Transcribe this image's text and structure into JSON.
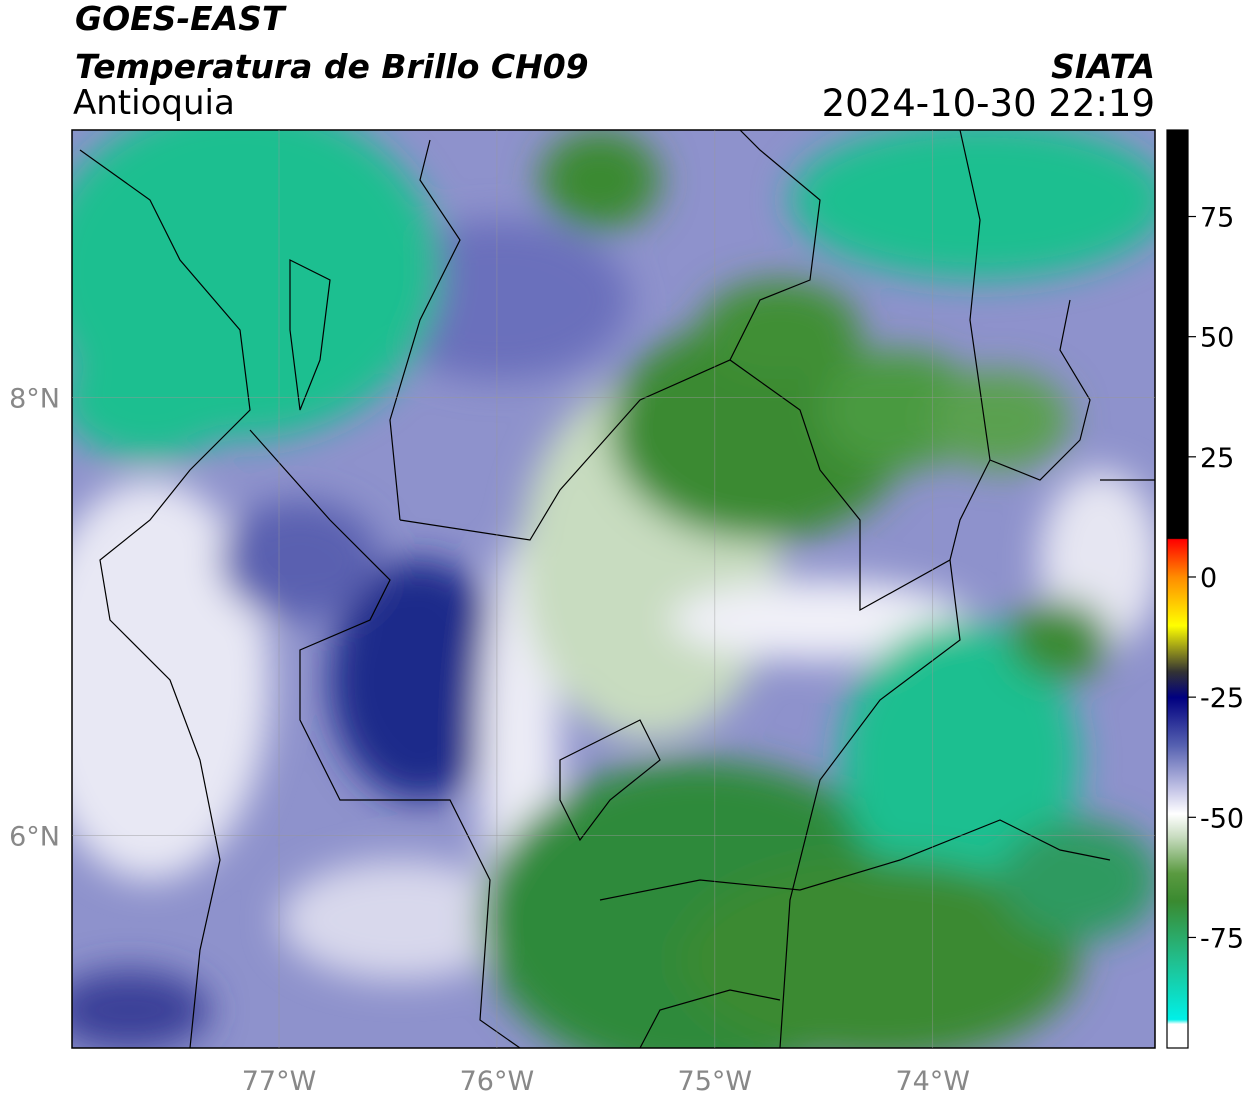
{
  "header": {
    "title": "GOES-EAST",
    "subtitle": "Temperatura de Brillo CH09",
    "region": "Antioquia",
    "source": "SIATA",
    "datetime": "2024-10-30 22:19"
  },
  "map": {
    "xlim": [
      -77.95,
      -72.98
    ],
    "ylim": [
      5.03,
      9.22
    ],
    "xticks": [
      {
        "value": -77,
        "label": "77°W"
      },
      {
        "value": -76,
        "label": "76°W"
      },
      {
        "value": -75,
        "label": "75°W"
      },
      {
        "value": -74,
        "label": "74°W"
      }
    ],
    "yticks": [
      {
        "value": 6,
        "label": "6°N"
      },
      {
        "value": 8,
        "label": "8°N"
      }
    ]
  },
  "colorbar": {
    "lim": [
      -98,
      93
    ],
    "ticks": [
      -75,
      -50,
      -25,
      0,
      25,
      50,
      75
    ]
  }
}
